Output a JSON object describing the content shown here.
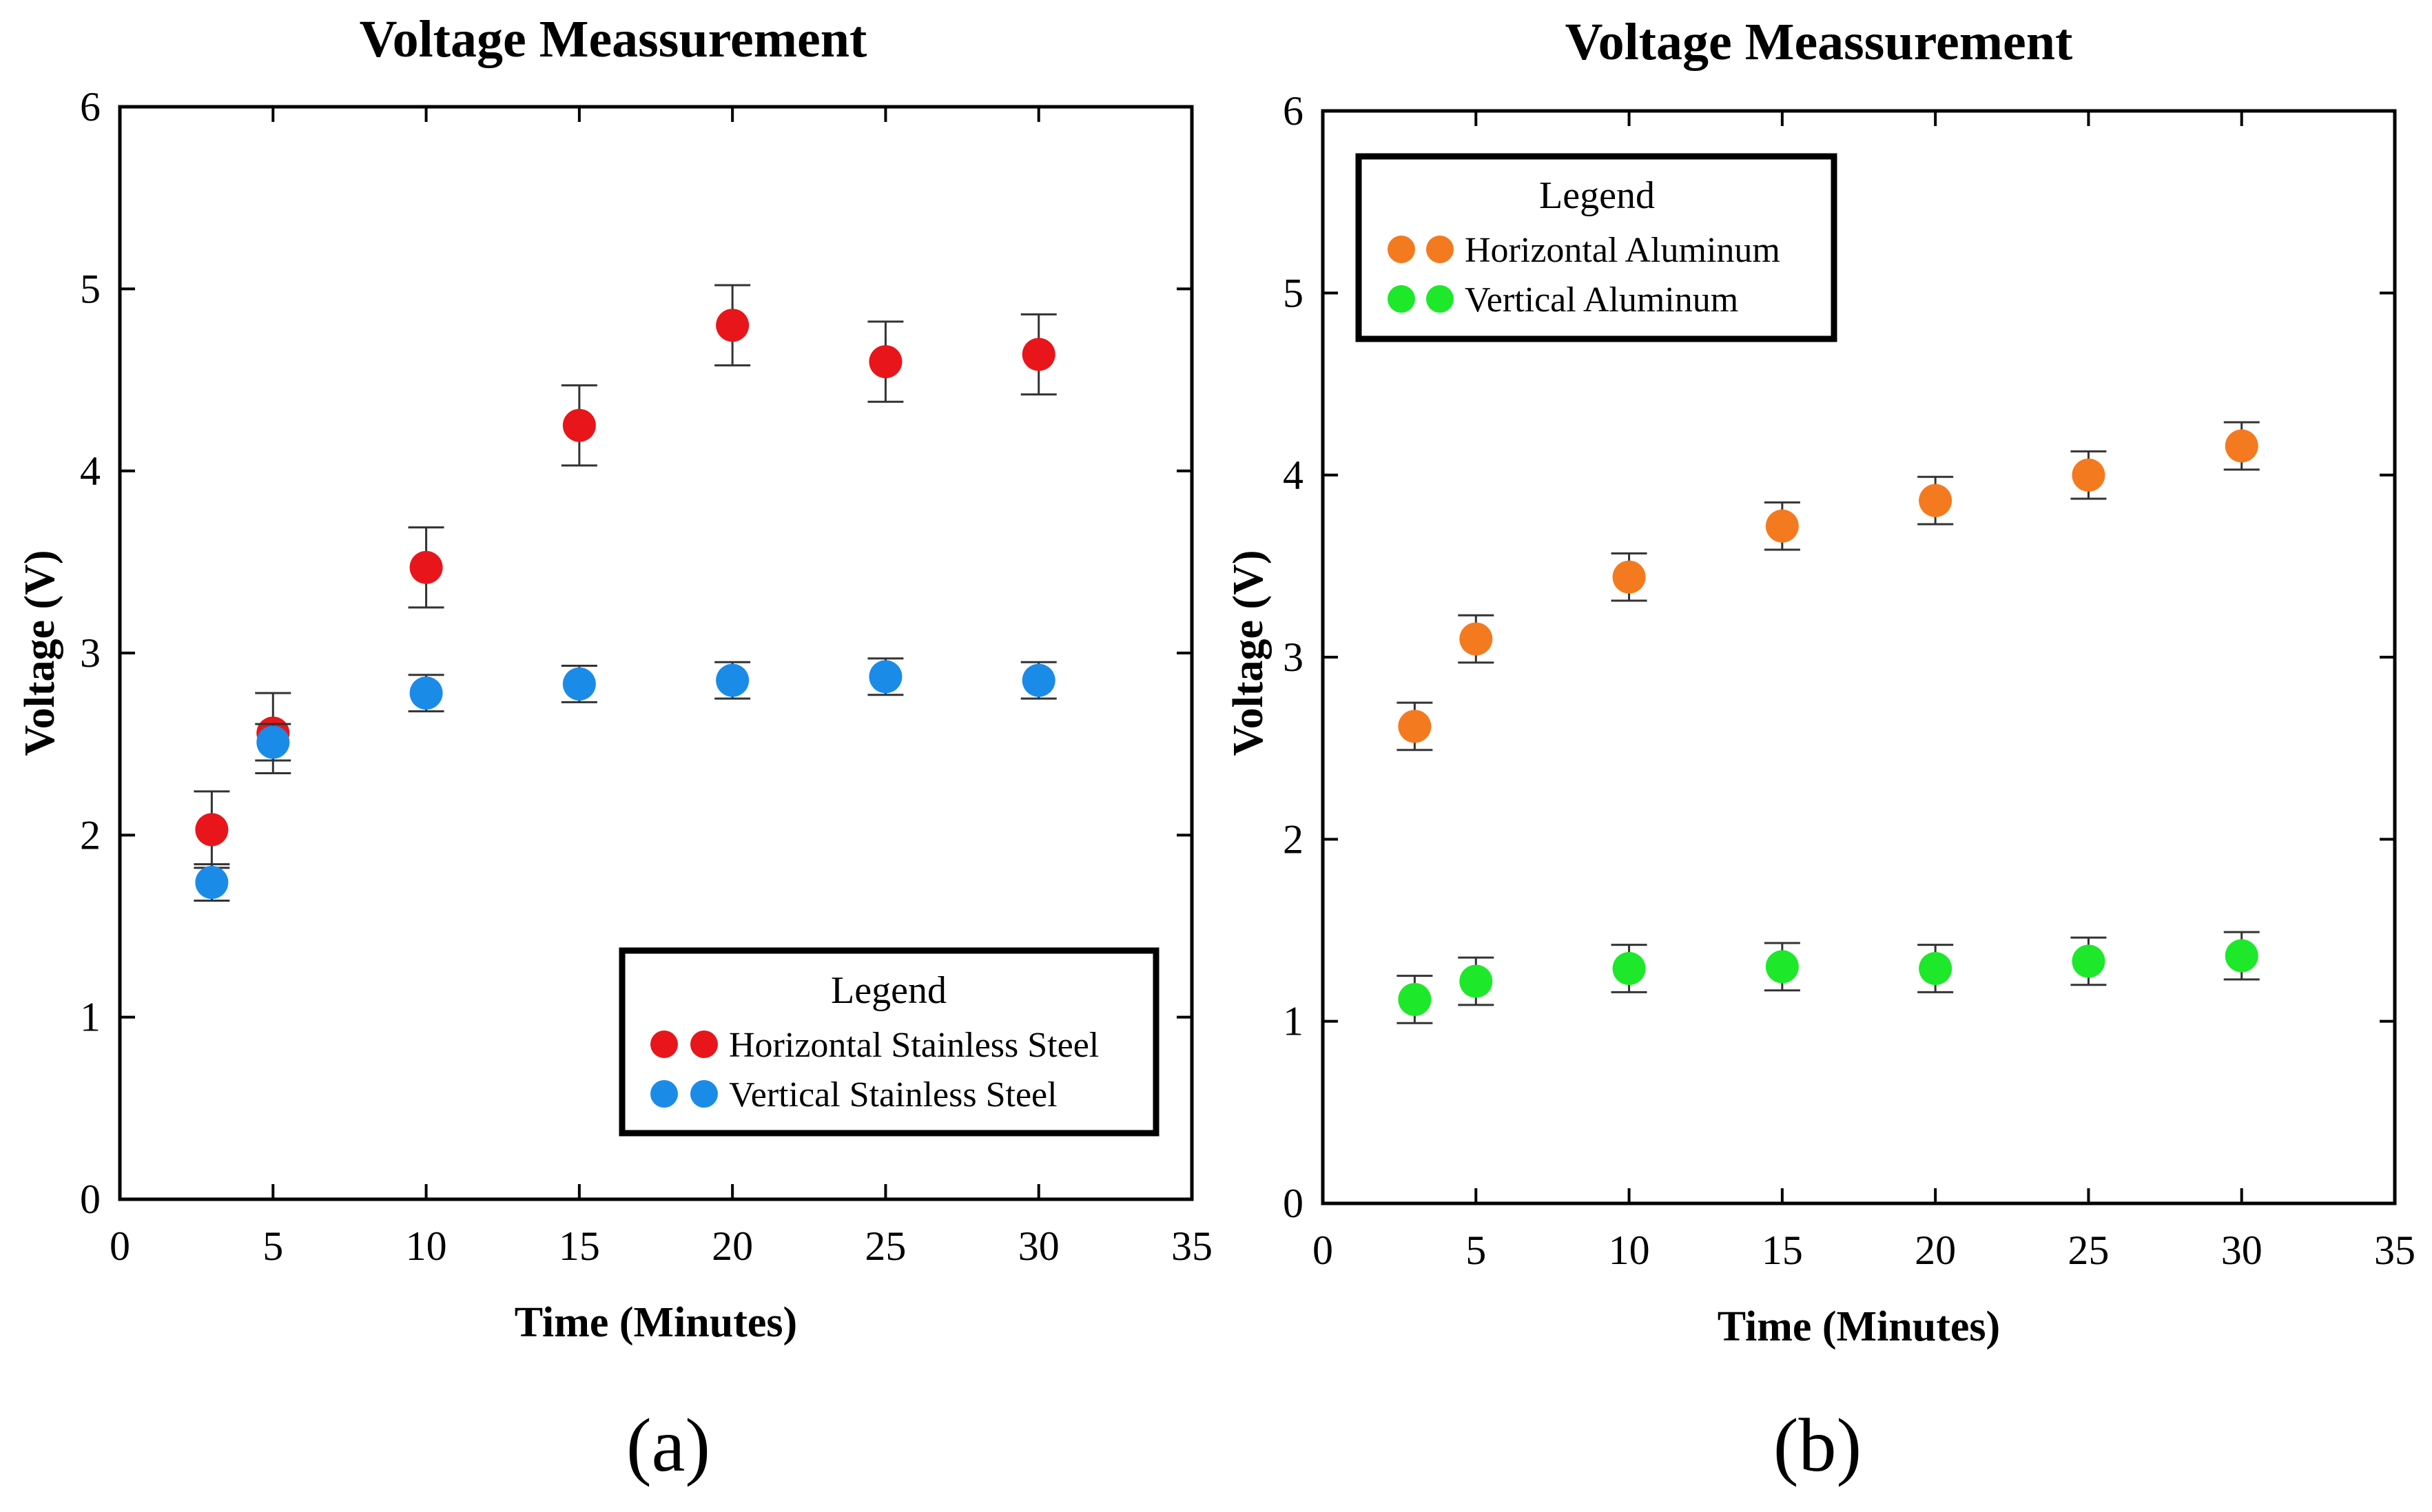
{
  "chart_data": [
    {
      "type": "scatter",
      "title": "Voltage Meassurement",
      "xlabel": "Time (Minutes)",
      "ylabel": "Voltage (V)",
      "xlim": [
        0,
        35
      ],
      "ylim": [
        0,
        6
      ],
      "xticks": [
        0,
        5,
        10,
        15,
        20,
        25,
        30,
        35
      ],
      "yticks": [
        0,
        1,
        2,
        3,
        4,
        5,
        6
      ],
      "panel_label": "(a)",
      "legend": {
        "title": "Legend",
        "position": "bottom-right"
      },
      "series": [
        {
          "name": "Horizontal Stainless Steel",
          "color": "#e8161b",
          "x": [
            3,
            5,
            10,
            15,
            20,
            25,
            30
          ],
          "y": [
            2.03,
            2.56,
            3.47,
            4.25,
            4.8,
            4.6,
            4.64
          ],
          "err": [
            0.21,
            0.22,
            0.22,
            0.22,
            0.22,
            0.22,
            0.22
          ]
        },
        {
          "name": "Vertical Stainless Steel",
          "color": "#1b8be8",
          "x": [
            3,
            5,
            10,
            15,
            20,
            25,
            30
          ],
          "y": [
            1.74,
            2.51,
            2.78,
            2.83,
            2.85,
            2.87,
            2.85
          ],
          "err": [
            0.1,
            0.1,
            0.1,
            0.1,
            0.1,
            0.1,
            0.1
          ]
        }
      ]
    },
    {
      "type": "scatter",
      "title": "Voltage Meassurement",
      "xlabel": "Time (Minutes)",
      "ylabel": "Voltage (V)",
      "xlim": [
        0,
        35
      ],
      "ylim": [
        0,
        6
      ],
      "xticks": [
        0,
        5,
        10,
        15,
        20,
        25,
        30,
        35
      ],
      "yticks": [
        0,
        1,
        2,
        3,
        4,
        5,
        6
      ],
      "panel_label": "(b)",
      "legend": {
        "title": "Legend",
        "position": "top-left"
      },
      "series": [
        {
          "name": "Horizontal Aluminum",
          "color": "#f47a20",
          "x": [
            3,
            5,
            10,
            15,
            20,
            25,
            30
          ],
          "y": [
            2.62,
            3.1,
            3.44,
            3.72,
            3.86,
            4.0,
            4.16
          ],
          "err": [
            0.13,
            0.13,
            0.13,
            0.13,
            0.13,
            0.13,
            0.13
          ]
        },
        {
          "name": "Vertical Aluminum",
          "color": "#1de82a",
          "x": [
            3,
            5,
            10,
            15,
            20,
            25,
            30
          ],
          "y": [
            1.12,
            1.22,
            1.29,
            1.3,
            1.29,
            1.33,
            1.36
          ],
          "err": [
            0.13,
            0.13,
            0.13,
            0.13,
            0.13,
            0.13,
            0.13
          ]
        }
      ]
    }
  ]
}
